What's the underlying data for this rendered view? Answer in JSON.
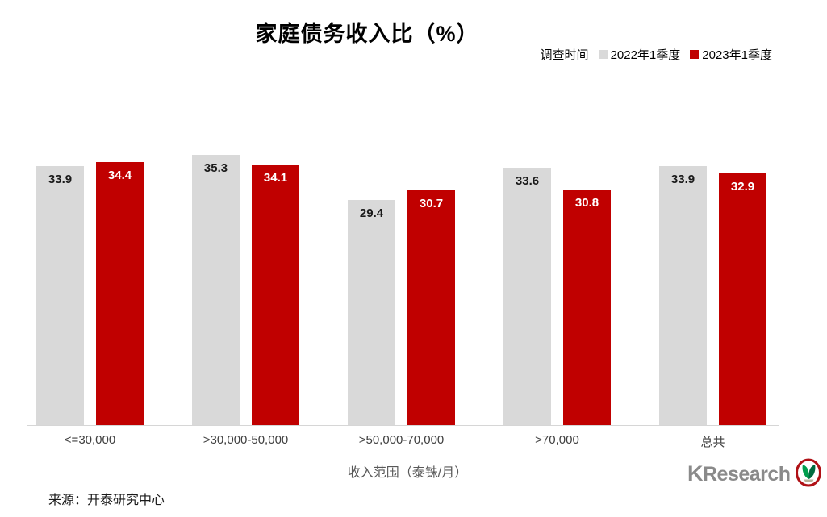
{
  "title": "家庭债务收入比（%）",
  "legend": {
    "label": "调查时间",
    "series": [
      {
        "name": "2022年1季度",
        "color": "#d9d9d9"
      },
      {
        "name": "2023年1季度",
        "color": "#c00000"
      }
    ]
  },
  "chart_data": {
    "type": "bar",
    "title": "家庭债务收入比（%）",
    "legend_title": "调查时间",
    "legend_position": "top-right",
    "categories": [
      "<=30,000",
      ">30,000-50,000",
      ">50,000-70,000",
      ">70,000",
      "总共"
    ],
    "series": [
      {
        "name": "2022年1季度",
        "color": "#d9d9d9",
        "label_color": "#1a1a1a",
        "values": [
          33.9,
          35.3,
          29.4,
          33.6,
          33.9
        ]
      },
      {
        "name": "2023年1季度",
        "color": "#c00000",
        "label_color": "#ffffff",
        "values": [
          34.4,
          34.1,
          30.7,
          30.8,
          32.9
        ]
      }
    ],
    "xlabel": "收入范围（泰铢/月）",
    "ylabel": "",
    "ylim": [
      0,
      40
    ],
    "grid": false,
    "yaxis_visible": false,
    "data_labels": "inside-top"
  },
  "xaxis_title": "收入范围（泰铢/月）",
  "source": "来源：开泰研究中心",
  "logo": {
    "text_k": "K",
    "text_rest": "Research",
    "icon": "kasikorn-sprout-icon",
    "ring_color": "#b01116",
    "leaf_color_light": "#009e4d",
    "leaf_color_dark": "#006b3f"
  }
}
